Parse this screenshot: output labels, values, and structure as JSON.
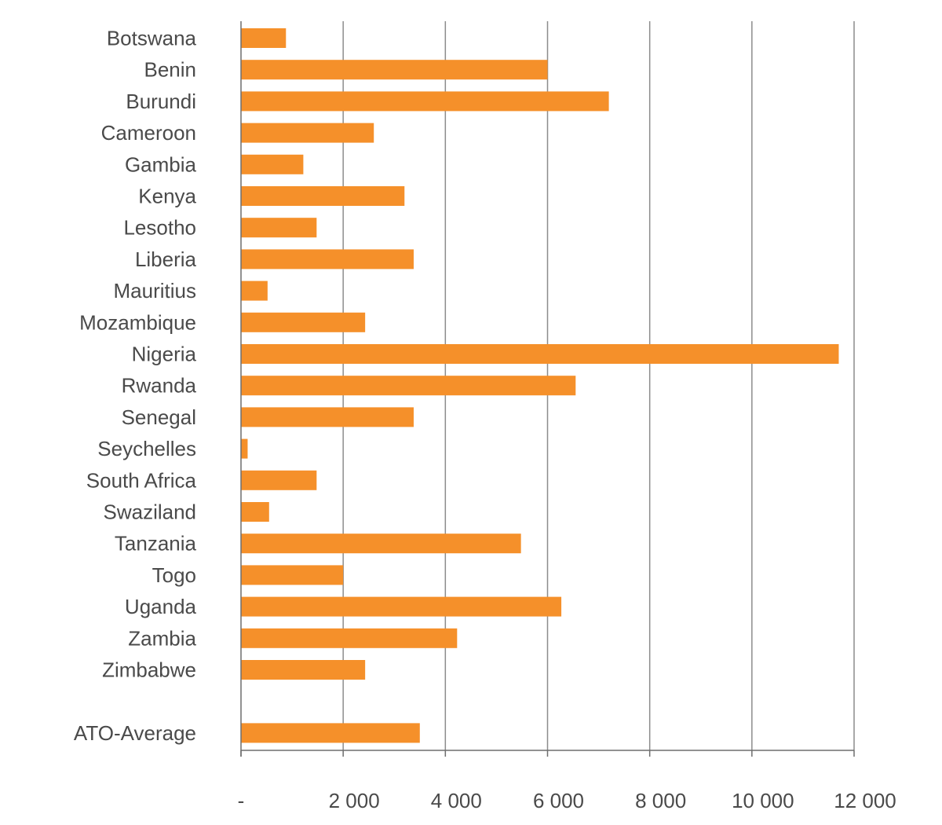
{
  "chart_data": {
    "type": "bar",
    "orientation": "horizontal",
    "title": "",
    "xlabel": "",
    "ylabel": "",
    "categories": [
      "Botswana",
      "Benin",
      "Burundi",
      "Cameroon",
      "Gambia",
      "Kenya",
      "Lesotho",
      "Liberia",
      "Mauritius",
      "Mozambique",
      "Nigeria",
      "Rwanda",
      "Senegal",
      "Seychelles",
      "South Africa",
      "Swaziland",
      "Tanzania",
      "Togo",
      "Uganda",
      "Zambia",
      "Zimbabwe",
      "",
      "ATO-Average"
    ],
    "values": [
      880,
      6000,
      7200,
      2600,
      1220,
      3200,
      1480,
      3380,
      520,
      2430,
      11700,
      6550,
      3380,
      130,
      1480,
      550,
      5480,
      2000,
      6270,
      4230,
      2430,
      null,
      3500
    ],
    "xlim": [
      0,
      12000
    ],
    "x_ticks": [
      0,
      2000,
      4000,
      6000,
      8000,
      10000,
      12000
    ],
    "x_tick_labels": [
      "-",
      "2 000",
      "4 000",
      "6 000",
      "8 000",
      "10 000",
      "12 000"
    ],
    "grid": "vertical",
    "legend": "none",
    "bar_color": "#F5902A",
    "grid_color": "#8c8c8c",
    "text_color": "#4a4a4a"
  }
}
